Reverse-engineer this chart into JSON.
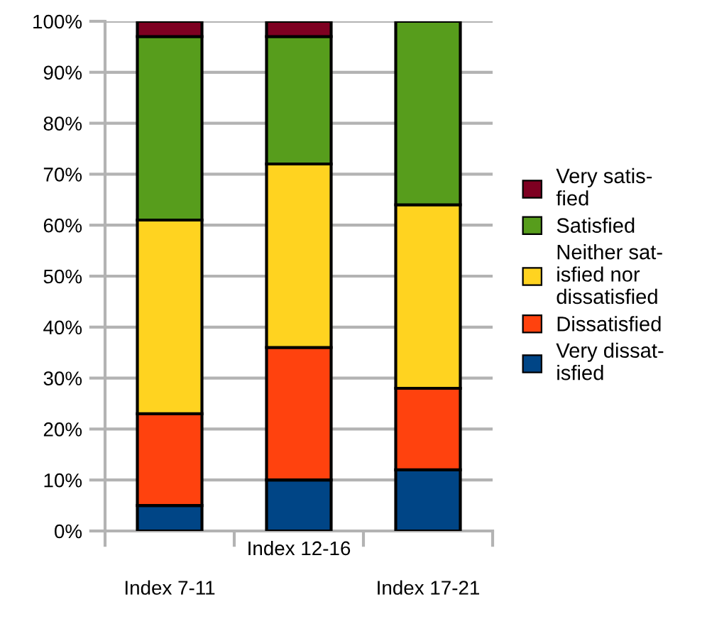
{
  "chart_data": {
    "type": "bar",
    "stacked": true,
    "categories": [
      "Index 7-11",
      "Index 12-16",
      "Index 17-21"
    ],
    "series": [
      {
        "name": "Very dissat-\nisfied",
        "color": "#004586",
        "values": [
          5,
          10,
          12
        ]
      },
      {
        "name": "Dissatisfied",
        "color": "#ff420e",
        "values": [
          18,
          26,
          16
        ]
      },
      {
        "name": "Neither sat-\nisfied nor\ndissatisfied",
        "color": "#ffd320",
        "values": [
          38,
          36,
          36
        ]
      },
      {
        "name": "Satisfied",
        "color": "#579d1c",
        "values": [
          36,
          25,
          36
        ]
      },
      {
        "name": "Very satis-\nfied",
        "color": "#7e0021",
        "values": [
          3,
          3,
          null
        ]
      }
    ],
    "ylim": [
      0,
      100
    ],
    "yticks": [
      {
        "value": 0,
        "label": "0%"
      },
      {
        "value": 10,
        "label": "10%"
      },
      {
        "value": 20,
        "label": "20%"
      },
      {
        "value": 30,
        "label": "30%"
      },
      {
        "value": 40,
        "label": "40%"
      },
      {
        "value": 50,
        "label": "50%"
      },
      {
        "value": 60,
        "label": "60%"
      },
      {
        "value": 70,
        "label": "70%"
      },
      {
        "value": 80,
        "label": "80%"
      },
      {
        "value": 90,
        "label": "90%"
      },
      {
        "value": 100,
        "label": "100%"
      }
    ],
    "grid": "y",
    "legend": "right"
  }
}
